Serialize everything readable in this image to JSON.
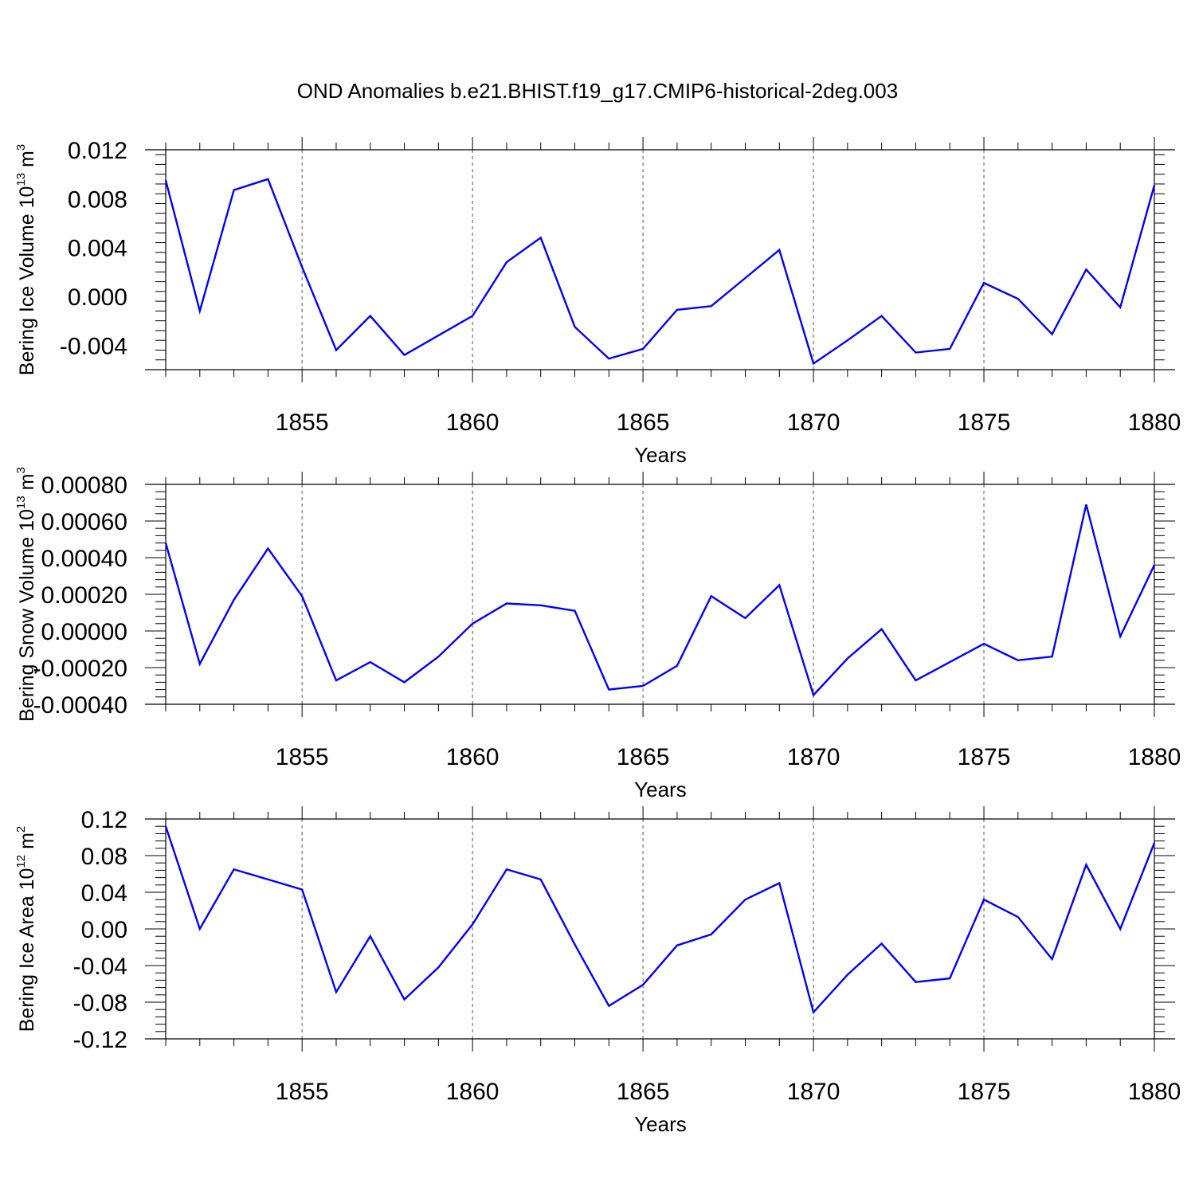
{
  "title": "OND Anomalies b.e21.BHIST.f19_g17.CMIP6-historical-2deg.003",
  "colors": {
    "line": "#0000ff",
    "axis": "#000000",
    "grid": "#555555"
  },
  "chart_data": [
    {
      "type": "line",
      "ylabel": "Bering Ice Volume",
      "ylabel_unit": {
        "base": "10",
        "exp": "13",
        "unit": "m",
        "unit_exp": "3"
      },
      "xlabel": "Years",
      "xlim": [
        1851,
        1880
      ],
      "ylim": [
        -0.006,
        0.012
      ],
      "yticks": [
        -0.004,
        0.0,
        0.004,
        0.008,
        0.012
      ],
      "ytick_labels": [
        "-0.004",
        "0.000",
        "0.004",
        "0.008",
        "0.012"
      ],
      "xticks": [
        1855,
        1860,
        1865,
        1870,
        1875,
        1880
      ],
      "xtick_labels": [
        "1855",
        "1860",
        "1865",
        "1870",
        "1875",
        "1880"
      ],
      "grid": "vertical dashed at major x ticks",
      "series": [
        {
          "x": [
            1851,
            1852,
            1853,
            1854,
            1855,
            1856,
            1857,
            1858,
            1859,
            1860,
            1861,
            1862,
            1863,
            1864,
            1865,
            1866,
            1867,
            1868,
            1869,
            1870,
            1871,
            1872,
            1873,
            1874,
            1875,
            1876,
            1877,
            1878,
            1879,
            1880
          ],
          "values": [
            0.0095,
            -0.0012,
            0.0087,
            0.0096,
            0.0024,
            -0.0044,
            -0.0016,
            -0.0048,
            -0.0032,
            -0.0016,
            0.0028,
            0.0048,
            -0.0025,
            -0.0051,
            -0.0043,
            -0.0011,
            -0.0008,
            0.0015,
            0.0038,
            -0.0055,
            -0.0036,
            -0.0016,
            -0.0046,
            -0.0043,
            0.0011,
            -0.0002,
            -0.0031,
            0.0022,
            -0.0009,
            0.0091
          ]
        }
      ]
    },
    {
      "type": "line",
      "ylabel": "Bering Snow Volume",
      "ylabel_unit": {
        "base": "10",
        "exp": "13",
        "unit": "m",
        "unit_exp": "3"
      },
      "xlabel": "Years",
      "xlim": [
        1851,
        1880
      ],
      "ylim": [
        -0.0004,
        0.0008
      ],
      "yticks": [
        -0.0004,
        -0.0002,
        0.0,
        0.0002,
        0.0004,
        0.0006,
        0.0008
      ],
      "ytick_labels": [
        "-0.00040",
        "-0.00020",
        "0.00000",
        "0.00020",
        "0.00040",
        "0.00060",
        "0.00080"
      ],
      "xticks": [
        1855,
        1860,
        1865,
        1870,
        1875,
        1880
      ],
      "xtick_labels": [
        "1855",
        "1860",
        "1865",
        "1870",
        "1875",
        "1880"
      ],
      "grid": "vertical dashed at major x ticks",
      "series": [
        {
          "x": [
            1851,
            1852,
            1853,
            1854,
            1855,
            1856,
            1857,
            1858,
            1859,
            1860,
            1861,
            1862,
            1863,
            1864,
            1865,
            1866,
            1867,
            1868,
            1869,
            1870,
            1871,
            1872,
            1873,
            1874,
            1875,
            1876,
            1877,
            1878,
            1879,
            1880
          ],
          "values": [
            0.00048,
            -0.00018,
            0.00017,
            0.00045,
            0.00019,
            -0.00027,
            -0.00017,
            -0.00028,
            -0.00014,
            4e-05,
            0.00015,
            0.00014,
            0.00011,
            -0.00032,
            -0.0003,
            -0.00019,
            0.00019,
            7e-05,
            0.00025,
            -0.00035,
            -0.00015,
            1e-05,
            -0.00027,
            -0.00017,
            -7e-05,
            -0.00016,
            -0.00014,
            0.00069,
            -3e-05,
            0.00036
          ]
        }
      ]
    },
    {
      "type": "line",
      "ylabel": "Bering Ice Area",
      "ylabel_unit": {
        "base": "10",
        "exp": "12",
        "unit": "m",
        "unit_exp": "2"
      },
      "xlabel": "Years",
      "xlim": [
        1851,
        1880
      ],
      "ylim": [
        -0.12,
        0.12
      ],
      "yticks": [
        -0.12,
        -0.08,
        -0.04,
        0.0,
        0.04,
        0.08,
        0.12
      ],
      "ytick_labels": [
        "-0.12",
        "-0.08",
        "-0.04",
        "0.00",
        "0.04",
        "0.08",
        "0.12"
      ],
      "xticks": [
        1855,
        1860,
        1865,
        1870,
        1875,
        1880
      ],
      "xtick_labels": [
        "1855",
        "1860",
        "1865",
        "1870",
        "1875",
        "1880"
      ],
      "grid": "vertical dashed at major x ticks",
      "series": [
        {
          "x": [
            1851,
            1852,
            1853,
            1854,
            1855,
            1856,
            1857,
            1858,
            1859,
            1860,
            1861,
            1862,
            1863,
            1864,
            1865,
            1866,
            1867,
            1868,
            1869,
            1870,
            1871,
            1872,
            1873,
            1874,
            1875,
            1876,
            1877,
            1878,
            1879,
            1880
          ],
          "values": [
            0.112,
            0.0,
            0.065,
            0.054,
            0.043,
            -0.069,
            -0.008,
            -0.077,
            -0.042,
            0.005,
            0.065,
            0.054,
            -0.017,
            -0.084,
            -0.061,
            -0.018,
            -0.006,
            0.032,
            0.05,
            -0.091,
            -0.05,
            -0.016,
            -0.058,
            -0.054,
            0.032,
            0.013,
            -0.033,
            0.07,
            0.0,
            0.094
          ]
        }
      ]
    }
  ]
}
